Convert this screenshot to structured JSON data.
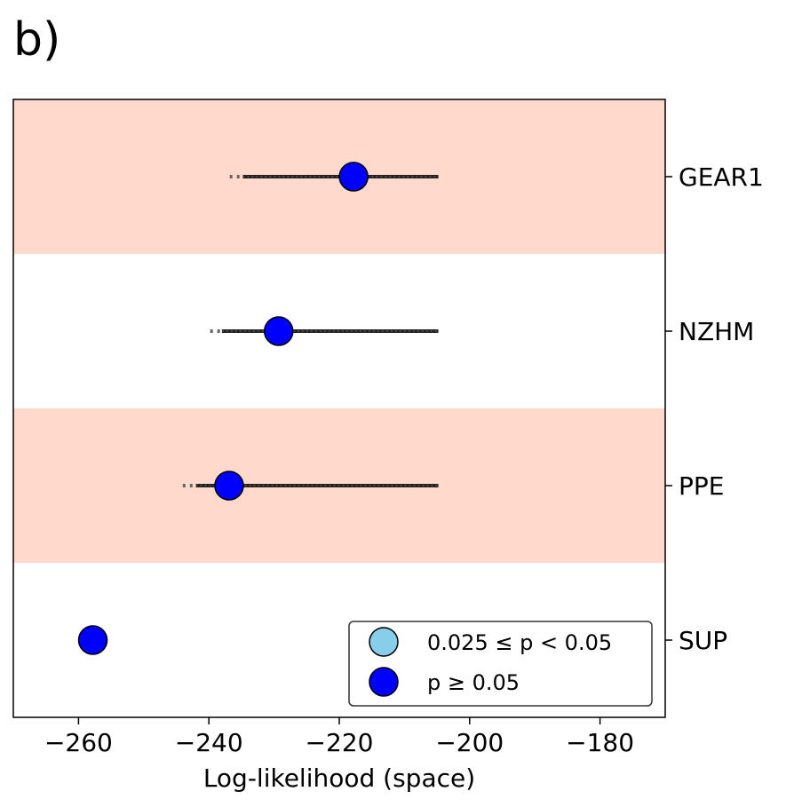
{
  "panel_label": "b)",
  "chart_data": {
    "type": "scatter",
    "xlabel": "Log-likelihood (space)",
    "ylabel": "",
    "xlim": [
      -270,
      -170
    ],
    "xticks": [
      -260,
      -240,
      -220,
      -200,
      -180
    ],
    "xtick_labels": [
      "−260",
      "−240",
      "−220",
      "−200",
      "−180"
    ],
    "categories": [
      "GEAR1",
      "NZHM",
      "PPE",
      "SUP"
    ],
    "band_color": "#ffd9cc",
    "band_rows": [
      0,
      2
    ],
    "points": [
      {
        "model": "GEAR1",
        "value": -217.8,
        "interval_low": -234.8,
        "interval_outer_low": -236.8,
        "interval_high": -204.8,
        "significance": "p >= 0.05"
      },
      {
        "model": "NZHM",
        "value": -229.3,
        "interval_low": -238.0,
        "interval_outer_low": -239.8,
        "interval_high": -204.8,
        "significance": "p >= 0.05"
      },
      {
        "model": "PPE",
        "value": -236.9,
        "interval_low": -242.0,
        "interval_outer_low": -244.0,
        "interval_high": -204.8,
        "significance": "p >= 0.05"
      },
      {
        "model": "SUP",
        "value": -257.8,
        "interval_low": null,
        "interval_outer_low": null,
        "interval_high": null,
        "significance": "p >= 0.05"
      }
    ],
    "legend": {
      "placement": "lower-right",
      "entries": [
        {
          "label": "0.025 ≤ p < 0.05",
          "color": "#87ceeb"
        },
        {
          "label": "p ≥ 0.05",
          "color": "#0000ff"
        }
      ]
    },
    "significance_colors": {
      "0.025 <= p < 0.05": "#87ceeb",
      "p >= 0.05": "#0000ff"
    }
  }
}
